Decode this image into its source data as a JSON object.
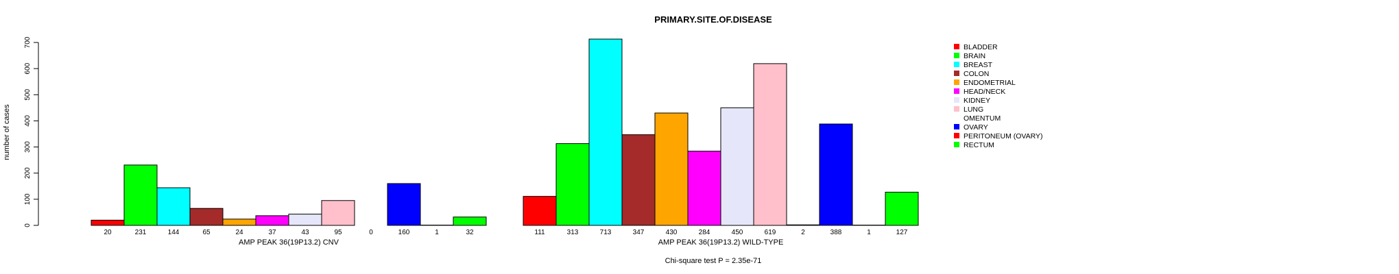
{
  "chart_data": {
    "type": "bar",
    "title": "PRIMARY.SITE.OF.DISEASE",
    "ylabel": "number of cases",
    "ylim": [
      0,
      700
    ],
    "yticks": [
      0,
      100,
      200,
      300,
      400,
      500,
      600,
      700
    ],
    "footnote": "Chi-square test P = 2.35e-71",
    "categories": [
      "BLADDER",
      "BRAIN",
      "BREAST",
      "COLON",
      "ENDOMETRIAL",
      "HEAD/NECK",
      "KIDNEY",
      "LUNG",
      "OMENTUM",
      "OVARY",
      "PERITONEUM (OVARY)",
      "RECTUM"
    ],
    "colors": [
      "#ff0000",
      "#00ff00",
      "#00ffff",
      "#a52a2a",
      "#ffa500",
      "#ff00ff",
      "#e6e6fa",
      "#ffc0cb",
      "#ffffff",
      "#0000ff",
      "#ff0000",
      "#00ff00"
    ],
    "groups": [
      {
        "name": "AMP PEAK 36(19P13.2) CNV",
        "values": [
          20,
          231,
          144,
          65,
          24,
          37,
          43,
          95,
          0,
          160,
          1,
          32
        ]
      },
      {
        "name": "AMP PEAK 36(19P13.2) WILD-TYPE",
        "values": [
          111,
          313,
          713,
          347,
          430,
          284,
          450,
          619,
          2,
          388,
          1,
          127
        ]
      }
    ]
  }
}
